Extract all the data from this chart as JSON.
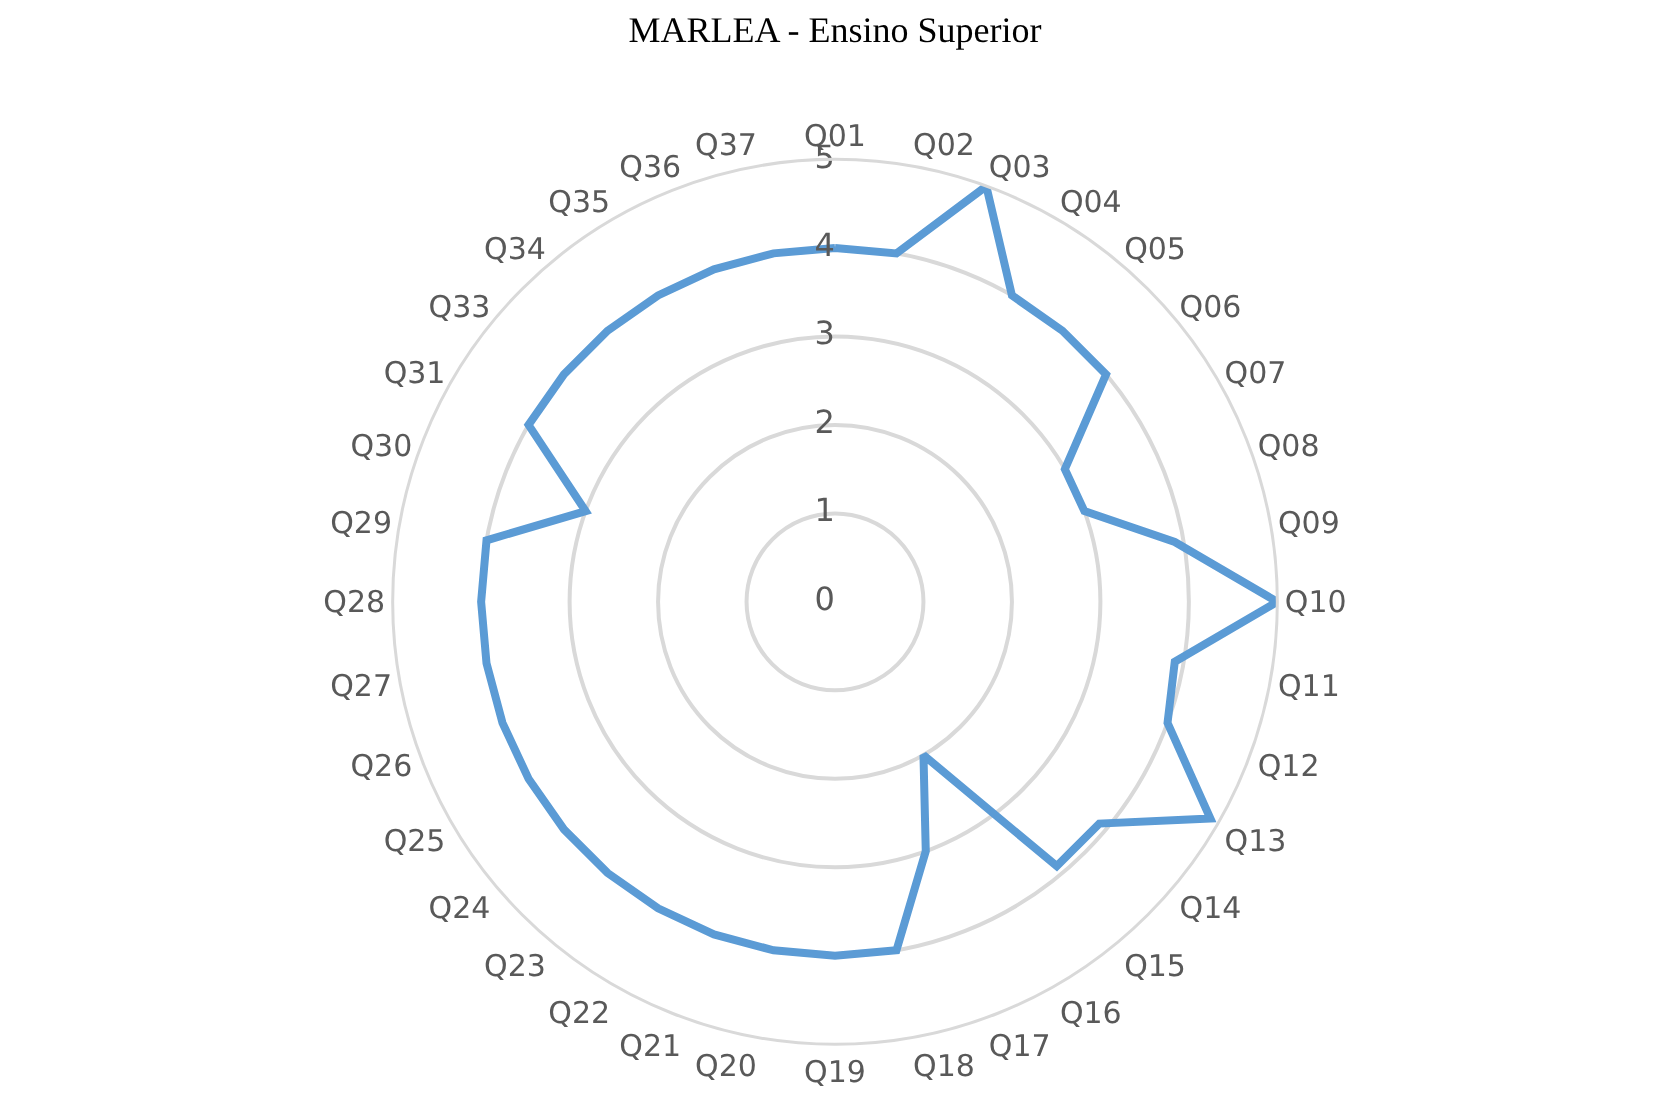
{
  "chart_data": {
    "type": "radar",
    "title": "MARLEA - Ensino Superior",
    "categories": [
      "Q01",
      "Q02",
      "Q03",
      "Q04",
      "Q05",
      "Q06",
      "Q07",
      "Q08",
      "Q09",
      "Q10",
      "Q11",
      "Q12",
      "Q13",
      "Q14",
      "Q15",
      "Q16",
      "Q17",
      "Q18",
      "Q19",
      "Q20",
      "Q21",
      "Q22",
      "Q23",
      "Q24",
      "Q25",
      "Q26",
      "Q27",
      "Q28",
      "Q29",
      "Q30",
      "Q31",
      "Q33",
      "Q34",
      "Q35",
      "Q36",
      "Q37"
    ],
    "series": [
      {
        "color": "#5b9bd5",
        "values": [
          4.0,
          4.0,
          5.0,
          4.0,
          4.0,
          4.0,
          3.0,
          3.0,
          3.9,
          5.0,
          3.9,
          4.0,
          4.9,
          3.9,
          3.9,
          2.0,
          3.0,
          4.0,
          4.0,
          4.0,
          4.0,
          4.0,
          4.0,
          4.0,
          4.0,
          4.0,
          4.0,
          4.0,
          4.0,
          3.0,
          4.0,
          4.0,
          4.0,
          4.0,
          4.0,
          4.0
        ]
      }
    ],
    "ylim": [
      0,
      5
    ],
    "yticks": [
      0,
      1,
      2,
      3,
      4,
      5
    ],
    "grid": true,
    "marker": "none",
    "line_style": "solid"
  }
}
